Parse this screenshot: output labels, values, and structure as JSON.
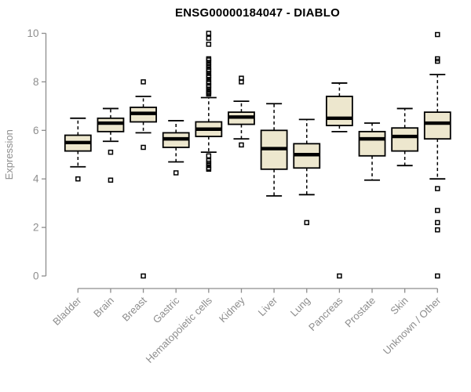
{
  "chart_data": {
    "type": "boxplot",
    "title": "ENSG00000184047 - DIABLO",
    "xlabel": "",
    "ylabel": "Expression",
    "ylim": [
      0,
      10
    ],
    "yticks": [
      0,
      2,
      4,
      6,
      8,
      10
    ],
    "grid": false,
    "legend": "none",
    "categories": [
      "Bladder",
      "Brain",
      "Breast",
      "Gastric",
      "Hematopoietic cells",
      "Kidney",
      "Liver",
      "Lung",
      "Pancreas",
      "Prostate",
      "Skin",
      "Unknown / Other"
    ],
    "series": [
      {
        "category": "Bladder",
        "whisker_low": 4.5,
        "q1": 5.15,
        "median": 5.5,
        "q3": 5.8,
        "whisker_high": 6.5,
        "outliers": [
          4.0
        ]
      },
      {
        "category": "Brain",
        "whisker_low": 5.55,
        "q1": 5.95,
        "median": 6.3,
        "q3": 6.5,
        "whisker_high": 6.9,
        "outliers": [
          5.1,
          3.95
        ]
      },
      {
        "category": "Breast",
        "whisker_low": 5.9,
        "q1": 6.35,
        "median": 6.7,
        "q3": 6.95,
        "whisker_high": 7.4,
        "outliers": [
          8.0,
          5.3,
          0
        ]
      },
      {
        "category": "Gastric",
        "whisker_low": 4.7,
        "q1": 5.3,
        "median": 5.65,
        "q3": 5.9,
        "whisker_high": 6.4,
        "outliers": [
          4.25
        ]
      },
      {
        "category": "Hematopoietic cells",
        "whisker_low": 5.1,
        "q1": 5.75,
        "median": 6.05,
        "q3": 6.35,
        "whisker_high": 7.35,
        "outliers": [
          10.0,
          9.8,
          9.55,
          8.95,
          8.9,
          8.8,
          8.7,
          8.6,
          8.5,
          8.45,
          8.35,
          8.25,
          8.2,
          8.1,
          8.0,
          7.95,
          7.85,
          7.8,
          7.7,
          7.6,
          7.55,
          7.5,
          4.95,
          4.75,
          4.65,
          4.55,
          4.45,
          4.4
        ]
      },
      {
        "category": "Kidney",
        "whisker_low": 5.65,
        "q1": 6.25,
        "median": 6.55,
        "q3": 6.75,
        "whisker_high": 7.2,
        "outliers": [
          8.15,
          8.0,
          5.4
        ]
      },
      {
        "category": "Liver",
        "whisker_low": 3.3,
        "q1": 4.4,
        "median": 5.25,
        "q3": 6.0,
        "whisker_high": 7.1,
        "outliers": []
      },
      {
        "category": "Lung",
        "whisker_low": 3.35,
        "q1": 4.45,
        "median": 5.0,
        "q3": 5.45,
        "whisker_high": 6.45,
        "outliers": [
          2.2
        ]
      },
      {
        "category": "Pancreas",
        "whisker_low": 5.95,
        "q1": 6.2,
        "median": 6.5,
        "q3": 7.4,
        "whisker_high": 7.95,
        "outliers": [
          0
        ]
      },
      {
        "category": "Prostate",
        "whisker_low": 3.95,
        "q1": 4.95,
        "median": 5.65,
        "q3": 5.95,
        "whisker_high": 6.3,
        "outliers": []
      },
      {
        "category": "Skin",
        "whisker_low": 4.55,
        "q1": 5.15,
        "median": 5.75,
        "q3": 6.1,
        "whisker_high": 6.9,
        "outliers": []
      },
      {
        "category": "Unknown / Other",
        "whisker_low": 4.0,
        "q1": 5.65,
        "median": 6.3,
        "q3": 6.75,
        "whisker_high": 8.3,
        "outliers": [
          9.95,
          8.95,
          8.85,
          3.6,
          2.7,
          2.2,
          1.9,
          0
        ]
      }
    ],
    "colors": {
      "box_fill": "#ede7ce",
      "box_stroke": "#000000",
      "median": "#000000",
      "whisker": "#000000",
      "outlier": "#000000",
      "axis": "#8d8d8d",
      "axis_text": "#8d8d8d",
      "title_text": "#000000",
      "background": "#ffffff"
    }
  }
}
